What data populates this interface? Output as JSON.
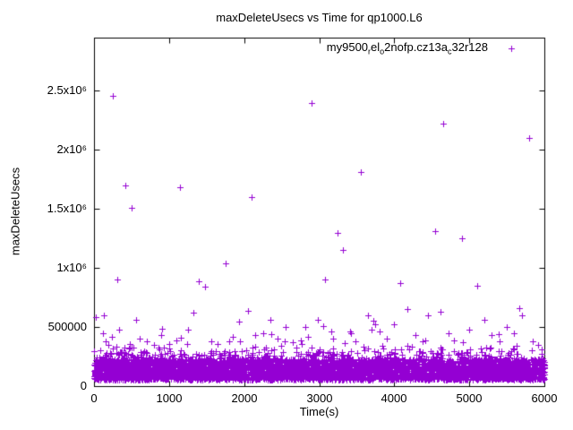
{
  "chart_data": {
    "type": "scatter",
    "title": "maxDeleteUsecs vs Time for qp1000.L6",
    "xlabel": "Time(s)",
    "ylabel": "maxDeleteUsecs",
    "xlim": [
      0,
      6000
    ],
    "ylim": [
      0,
      2950000
    ],
    "grid": false,
    "x_ticks": [
      0,
      1000,
      2000,
      3000,
      4000,
      5000,
      6000
    ],
    "x_tick_labels": [
      "0",
      "1000",
      "2000",
      "3000",
      "4000",
      "5000",
      "6000"
    ],
    "y_ticks": [
      0,
      500000,
      1000000,
      1500000,
      2000000,
      2500000
    ],
    "y_tick_labels": [
      "0",
      "500000",
      "1x10⁶",
      "1.5x10⁶",
      "2x10⁶",
      "2.5x10⁶"
    ],
    "legend": {
      "label": "my9500_rel_o2nofp.cz13a_c32r128",
      "position": "top-right"
    },
    "marker": {
      "shape": "plus",
      "color": "#9400d3",
      "size": 3
    },
    "series": [
      {
        "name": "my9500_rel_o2nofp.cz13a_c32r128",
        "outliers": [
          [
            130,
            600000
          ],
          [
            150,
            380000
          ],
          [
            190,
            350000
          ],
          [
            250,
            2460000
          ],
          [
            310,
            900000
          ],
          [
            330,
            480000
          ],
          [
            420,
            1700000
          ],
          [
            480,
            360000
          ],
          [
            500,
            1510000
          ],
          [
            560,
            560000
          ],
          [
            610,
            400000
          ],
          [
            700,
            380000
          ],
          [
            800,
            350000
          ],
          [
            900,
            430000
          ],
          [
            1000,
            360000
          ],
          [
            1100,
            390000
          ],
          [
            1150,
            1680000
          ],
          [
            1250,
            480000
          ],
          [
            1320,
            620000
          ],
          [
            1400,
            890000
          ],
          [
            1480,
            840000
          ],
          [
            1560,
            380000
          ],
          [
            1650,
            360000
          ],
          [
            1750,
            1040000
          ],
          [
            1850,
            420000
          ],
          [
            1950,
            380000
          ],
          [
            2050,
            640000
          ],
          [
            2100,
            1600000
          ],
          [
            2150,
            430000
          ],
          [
            2250,
            450000
          ],
          [
            2350,
            560000
          ],
          [
            2450,
            400000
          ],
          [
            2550,
            500000
          ],
          [
            2650,
            370000
          ],
          [
            2750,
            390000
          ],
          [
            2850,
            420000
          ],
          [
            2900,
            2400000
          ],
          [
            2980,
            560000
          ],
          [
            3080,
            900000
          ],
          [
            3180,
            400000
          ],
          [
            3250,
            1300000
          ],
          [
            3320,
            1150000
          ],
          [
            3420,
            450000
          ],
          [
            3480,
            380000
          ],
          [
            3550,
            1810000
          ],
          [
            3650,
            600000
          ],
          [
            3720,
            550000
          ],
          [
            3800,
            460000
          ],
          [
            3900,
            400000
          ],
          [
            4000,
            520000
          ],
          [
            4080,
            870000
          ],
          [
            4180,
            650000
          ],
          [
            4280,
            430000
          ],
          [
            4380,
            380000
          ],
          [
            4450,
            600000
          ],
          [
            4550,
            1310000
          ],
          [
            4650,
            2220000
          ],
          [
            4720,
            450000
          ],
          [
            4800,
            390000
          ],
          [
            4900,
            1250000
          ],
          [
            5000,
            480000
          ],
          [
            5100,
            850000
          ],
          [
            5200,
            560000
          ],
          [
            5300,
            430000
          ],
          [
            5400,
            380000
          ],
          [
            5500,
            500000
          ],
          [
            5600,
            450000
          ],
          [
            5700,
            600000
          ],
          [
            5800,
            2100000
          ],
          [
            5850,
            380000
          ],
          [
            5920,
            350000
          ]
        ],
        "dense_band": {
          "count": 5200,
          "x_min": 0,
          "x_max": 6000,
          "y_base": 55000,
          "y_spread": 175000,
          "tail_prob": 0.3,
          "tail_max": 130000,
          "spike_prob": 0.008,
          "spike_max": 420000,
          "seed": 1337
        }
      }
    ]
  }
}
